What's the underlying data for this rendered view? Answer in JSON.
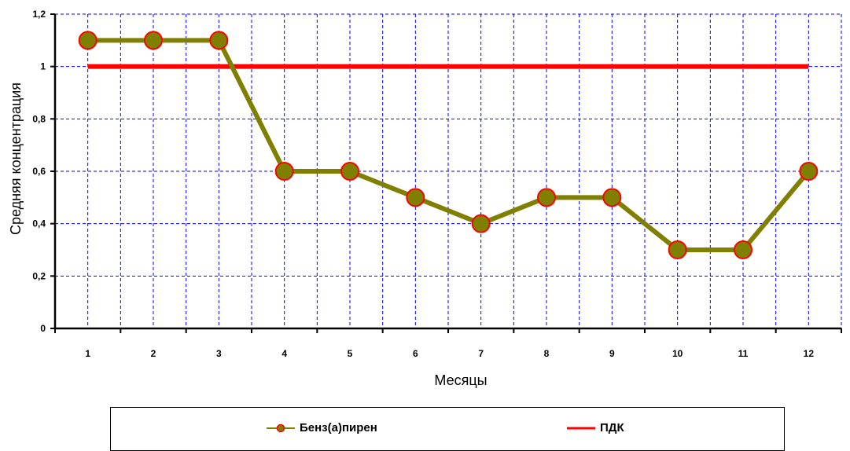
{
  "chart_data": {
    "type": "line",
    "title": "",
    "xlabel": "Месяцы",
    "ylabel": "Средняя концентрация",
    "categories": [
      "1",
      "2",
      "3",
      "4",
      "5",
      "6",
      "7",
      "8",
      "9",
      "10",
      "11",
      "12"
    ],
    "ylim": [
      0,
      1.2
    ],
    "yticks": [
      0,
      0.2,
      0.4,
      0.6,
      0.8,
      1,
      1.2
    ],
    "ytick_labels": [
      "0",
      "0,2",
      "0,4",
      "0,6",
      "0,8",
      "1",
      "1,2"
    ],
    "grid": true,
    "legend_position": "bottom",
    "series": [
      {
        "name": "Бенз(а)пирен",
        "values": [
          1.1,
          1.1,
          1.1,
          0.6,
          0.6,
          0.5,
          0.4,
          0.5,
          0.5,
          0.3,
          0.3,
          0.6
        ],
        "color": "#808000",
        "marker": "circle",
        "marker_edge_color": "#ff0000"
      },
      {
        "name": "ПДК",
        "values": [
          1,
          1,
          1,
          1,
          1,
          1,
          1,
          1,
          1,
          1,
          1,
          1
        ],
        "color": "#ff0000",
        "marker": "none"
      }
    ]
  },
  "colors": {
    "grid": "#0000ff",
    "axis": "#000000",
    "background": "#ffffff"
  }
}
